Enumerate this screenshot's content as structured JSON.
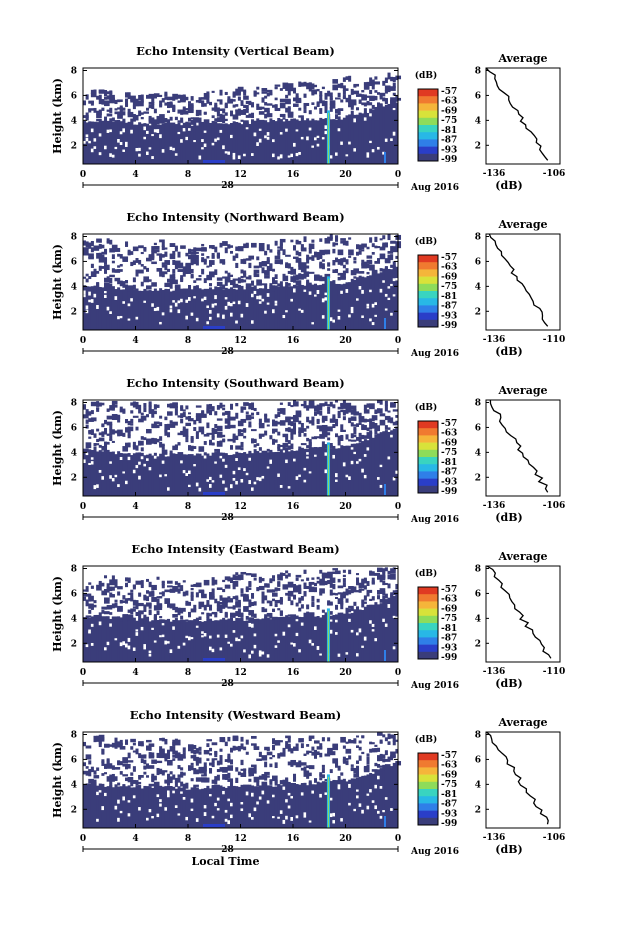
{
  "chart_data": [
    {
      "type": "heatmap",
      "title": "Echo Intensity (Vertical Beam)",
      "ylabel": "Height (km)",
      "x_ticks": [
        "0",
        "4",
        "8",
        "12",
        "16",
        "20",
        "0"
      ],
      "xlim": [
        0,
        24
      ],
      "y_ticks": [
        "2",
        "4",
        "6",
        "8"
      ],
      "ylim": [
        0.5,
        8.2
      ],
      "date_day": "28",
      "date_label": "Aug 2016",
      "colorbar_unit": "(dB)",
      "colorbar_ticks": [
        "-57",
        "-63",
        "-69",
        "-75",
        "-81",
        "-87",
        "-93",
        "-99"
      ],
      "cloud_top_km": [
        5.2,
        5.4,
        5.0,
        5.3,
        4.9,
        5.2,
        5.6,
        5.5,
        6.0,
        5.8,
        6.5,
        6.3,
        7.0
      ],
      "low_layer_top_km": [
        3.9,
        3.9,
        3.8,
        3.7,
        3.7,
        3.8,
        3.8,
        3.9,
        4.0,
        4.1,
        4.2,
        4.8,
        5.5
      ],
      "spike_hour": 18.7,
      "average": {
        "title": "Average",
        "xlabel": "(dB)",
        "x_ticks": [
          "-136",
          "-106"
        ],
        "xlim": [
          -136,
          -106
        ],
        "y_ticks": [
          "2",
          "4",
          "6",
          "8"
        ],
        "ylim": [
          0.5,
          8.2
        ]
      }
    },
    {
      "type": "heatmap",
      "title": "Echo Intensity (Northward Beam)",
      "ylabel": "Height (km)",
      "x_ticks": [
        "0",
        "4",
        "8",
        "12",
        "16",
        "20",
        "0"
      ],
      "xlim": [
        0,
        24
      ],
      "y_ticks": [
        "2",
        "4",
        "6",
        "8"
      ],
      "ylim": [
        0.5,
        8.2
      ],
      "date_day": "28",
      "date_label": "Aug 2016",
      "colorbar_unit": "(dB)",
      "colorbar_ticks": [
        "-57",
        "-63",
        "-69",
        "-75",
        "-81",
        "-87",
        "-93",
        "-99"
      ],
      "cloud_top_km": [
        6.5,
        6.8,
        6.2,
        6.6,
        6.0,
        6.4,
        6.7,
        6.3,
        6.9,
        6.8,
        7.2,
        7.0,
        7.4
      ],
      "low_layer_top_km": [
        4.0,
        3.9,
        3.8,
        3.7,
        3.8,
        3.8,
        3.9,
        3.9,
        4.0,
        4.1,
        4.3,
        5.0,
        5.6
      ],
      "spike_hour": 18.7,
      "average": {
        "title": "Average",
        "xlabel": "(dB)",
        "x_ticks": [
          "-136",
          "-110"
        ],
        "xlim": [
          -136,
          -110
        ],
        "y_ticks": [
          "2",
          "4",
          "6",
          "8"
        ],
        "ylim": [
          0.5,
          8.2
        ]
      }
    },
    {
      "type": "heatmap",
      "title": "Echo Intensity (Southward Beam)",
      "ylabel": "Height (km)",
      "x_ticks": [
        "0",
        "4",
        "8",
        "12",
        "16",
        "20",
        "0"
      ],
      "xlim": [
        0,
        24
      ],
      "y_ticks": [
        "2",
        "4",
        "6",
        "8"
      ],
      "ylim": [
        0.5,
        8.2
      ],
      "date_day": "28",
      "date_label": "Aug 2016",
      "colorbar_unit": "(dB)",
      "colorbar_ticks": [
        "-57",
        "-63",
        "-69",
        "-75",
        "-81",
        "-87",
        "-93",
        "-99"
      ],
      "cloud_top_km": [
        6.8,
        7.2,
        6.9,
        7.0,
        6.6,
        6.8,
        7.0,
        6.7,
        7.1,
        7.0,
        7.3,
        7.2,
        7.6
      ],
      "low_layer_top_km": [
        4.2,
        4.0,
        3.9,
        3.8,
        3.8,
        3.9,
        3.9,
        4.0,
        4.2,
        4.3,
        4.5,
        5.2,
        6.0
      ],
      "spike_hour": 18.7,
      "average": {
        "title": "Average",
        "xlabel": "(dB)",
        "x_ticks": [
          "-136",
          "-106"
        ],
        "xlim": [
          -136,
          -106
        ],
        "y_ticks": [
          "2",
          "4",
          "6",
          "8"
        ],
        "ylim": [
          0.5,
          8.2
        ]
      }
    },
    {
      "type": "heatmap",
      "title": "Echo Intensity (Eastward Beam)",
      "ylabel": "Height (km)",
      "x_ticks": [
        "0",
        "4",
        "8",
        "12",
        "16",
        "20",
        "0"
      ],
      "xlim": [
        0,
        24
      ],
      "y_ticks": [
        "2",
        "4",
        "6",
        "8"
      ],
      "ylim": [
        0.5,
        8.2
      ],
      "date_day": "28",
      "date_label": "Aug 2016",
      "colorbar_unit": "(dB)",
      "colorbar_ticks": [
        "-57",
        "-63",
        "-69",
        "-75",
        "-81",
        "-87",
        "-93",
        "-99"
      ],
      "cloud_top_km": [
        6.2,
        6.6,
        6.0,
        6.4,
        5.9,
        6.2,
        6.6,
        6.2,
        6.8,
        6.7,
        7.0,
        6.9,
        7.4
      ],
      "low_layer_top_km": [
        4.1,
        4.0,
        3.9,
        3.8,
        3.8,
        3.9,
        3.9,
        4.0,
        4.1,
        4.2,
        4.4,
        5.0,
        5.8
      ],
      "spike_hour": 18.7,
      "average": {
        "title": "Average",
        "xlabel": "(dB)",
        "x_ticks": [
          "-136",
          "-110"
        ],
        "xlim": [
          -136,
          -110
        ],
        "y_ticks": [
          "2",
          "4",
          "6",
          "8"
        ],
        "ylim": [
          0.5,
          8.2
        ]
      }
    },
    {
      "type": "heatmap",
      "title": "Echo Intensity (Westward Beam)",
      "ylabel": "Height (km)",
      "x_ticks": [
        "0",
        "4",
        "8",
        "12",
        "16",
        "20",
        "0"
      ],
      "xlim": [
        0,
        24
      ],
      "y_ticks": [
        "2",
        "4",
        "6",
        "8"
      ],
      "ylim": [
        0.5,
        8.2
      ],
      "date_day": "28",
      "date_label": "Aug 2016",
      "xlabel": "Local Time",
      "colorbar_unit": "(dB)",
      "colorbar_ticks": [
        "-57",
        "-63",
        "-69",
        "-75",
        "-81",
        "-87",
        "-93",
        "-99"
      ],
      "cloud_top_km": [
        6.6,
        6.9,
        6.4,
        6.7,
        6.3,
        6.5,
        6.9,
        6.5,
        7.0,
        6.9,
        7.2,
        7.1,
        7.5
      ],
      "low_layer_top_km": [
        4.0,
        3.9,
        3.8,
        3.8,
        3.7,
        3.8,
        3.9,
        3.9,
        4.0,
        4.1,
        4.3,
        4.9,
        5.7
      ],
      "spike_hour": 18.7,
      "average": {
        "title": "Average",
        "xlabel": "(dB)",
        "x_ticks": [
          "-136",
          "-106"
        ],
        "xlim": [
          -136,
          -106
        ],
        "y_ticks": [
          "2",
          "4",
          "6",
          "8"
        ],
        "ylim": [
          0.5,
          8.2
        ]
      }
    }
  ],
  "colors": {
    "background_echo": "#3a3d7a",
    "colorbar": [
      "#3a3d7a",
      "#2a3ec8",
      "#2f7fe8",
      "#28b8e6",
      "#39d4c0",
      "#8edc5a",
      "#d8e23a",
      "#f5b53a",
      "#f07a30",
      "#e03a22"
    ]
  }
}
